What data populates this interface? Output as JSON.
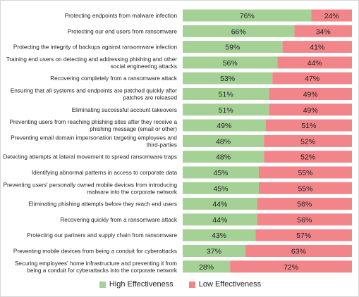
{
  "colors": {
    "high": "#a6d196",
    "low": "#f2858a",
    "border": "#d6d6d6"
  },
  "legend": {
    "high": "High Effectiveness",
    "low": "Low Effectiveness"
  },
  "chart_data": {
    "type": "bar",
    "orientation": "horizontal",
    "stacked": true,
    "categories": [
      "Protecting endpoints from malware infection",
      "Protecting our end users from ransomware",
      "Protecting the integrity of backups against ransomware infection",
      "Training end users on detecting and addressing phishing and other social engineering attacks",
      "Recovering completely from a ransomware attack",
      "Ensuring that all systems and endpoints are patched quickly after patches are released",
      "Eliminating successful account takeovers",
      "Preventing users from reaching phishing sites after they receive a phishing message (email or other)",
      "Preventing email domain impersonation targeting employees and third-parties",
      "Detecting attempts at lateral movement to spread ransomware traps",
      "Identifying abnormal patterns in access to corporate data",
      "Preventing users' personally owned mobile devices from introducing malware into the corporate network",
      "Eliminating phishing attempts before they reach end users",
      "Recovering quickly from a ransomware attack",
      "Protecting our partners and supply chain from ransomware",
      "Preventing mobile devices from being a conduit for cyberattacks",
      "Securing employees' home infrastructure and preventing it from being a conduit for cyberattacks into the corporate network"
    ],
    "category_lines": [
      [
        "Protecting endpoints from malware infection"
      ],
      [
        "Protecting our end users from ransomware"
      ],
      [
        "Protecting the integrity of backups against ransomware infection"
      ],
      [
        "Training end users on detecting and addressing phishing and other",
        "social engineering attacks"
      ],
      [
        "Recovering completely from a ransomware attack"
      ],
      [
        "Ensuring that all systems and endpoints are patched quickly after",
        "patches are released"
      ],
      [
        "Eliminating successful account takeovers"
      ],
      [
        "Preventing users from reaching phishing sites after they receive a",
        "phishing message (email or other)"
      ],
      [
        "Preventing email domain impersonation targeting employees and",
        "third-parties"
      ],
      [
        "Detecting attempts at lateral movement to spread ransomware traps"
      ],
      [
        "Identifying abnormal patterns in access to corporate data"
      ],
      [
        "Preventing users' personally owned mobile devices from introducing",
        "malware into the corporate network"
      ],
      [
        "Eliminating phishing attempts before they reach end users"
      ],
      [
        "Recovering quickly from a ransomware attack"
      ],
      [
        "Protecting our partners and supply chain from ransomware"
      ],
      [
        "Preventing mobile devices from being a conduit for cyberattacks"
      ],
      [
        "Securing employees' home infrastructure and preventing it from",
        "being a conduit for cyberattacks into the corporate network"
      ]
    ],
    "series": [
      {
        "name": "High Effectiveness",
        "values": [
          76,
          66,
          59,
          56,
          53,
          51,
          51,
          49,
          48,
          48,
          45,
          45,
          44,
          44,
          43,
          37,
          28
        ]
      },
      {
        "name": "Low Effectiveness",
        "values": [
          24,
          34,
          41,
          44,
          47,
          49,
          49,
          51,
          52,
          52,
          55,
          55,
          56,
          56,
          57,
          63,
          72
        ]
      }
    ],
    "value_suffix": "%",
    "xlim": [
      0,
      100
    ],
    "grid": false,
    "legend_position": "bottom"
  }
}
